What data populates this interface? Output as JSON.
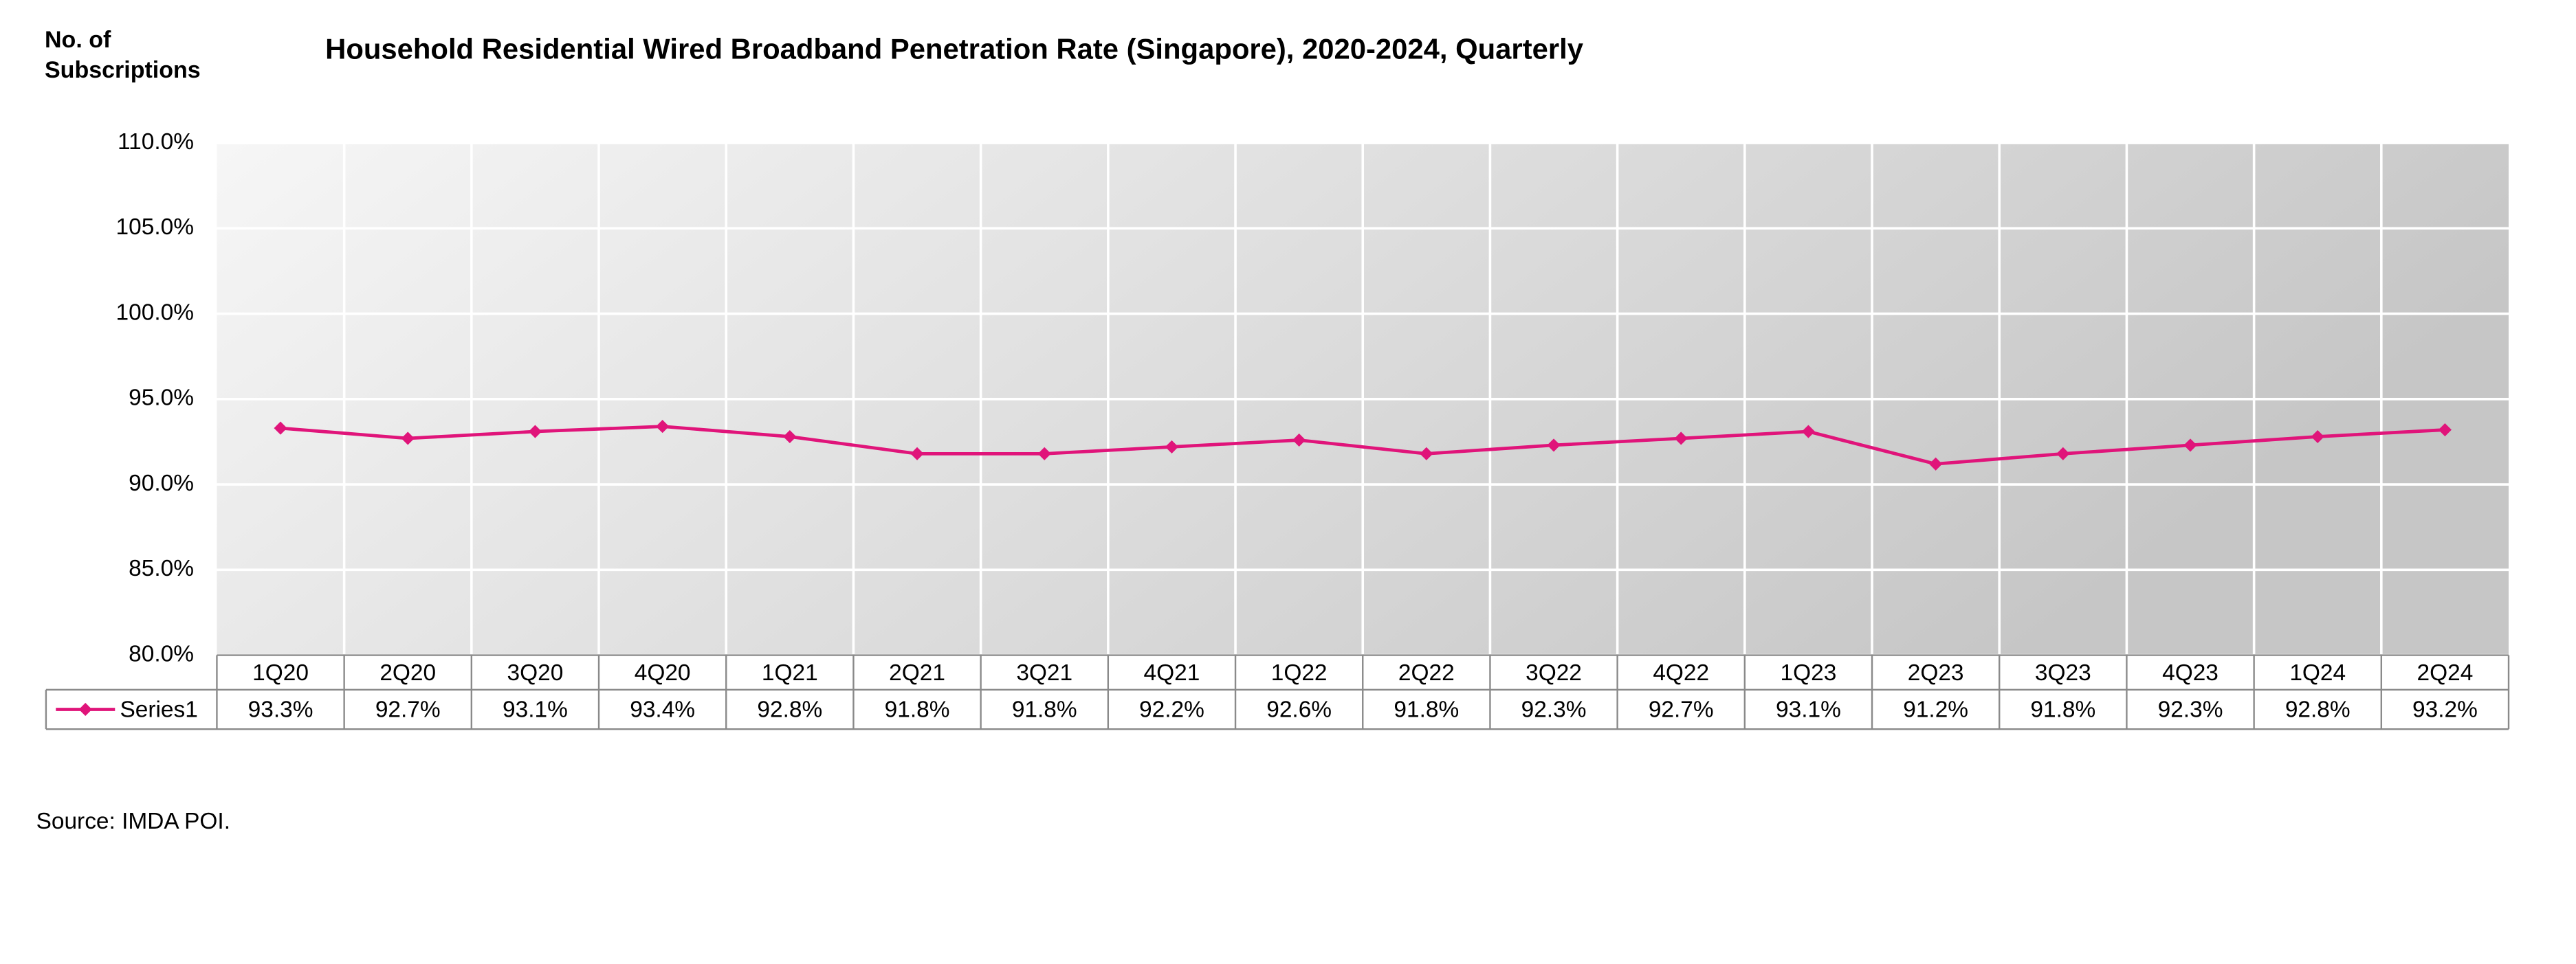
{
  "chart_data": {
    "type": "line",
    "title": "Household Residential Wired Broadband Penetration Rate (Singapore), 2020-2024, Quarterly",
    "y_label": "No. of Subscriptions",
    "source": "Source: IMDA POI.",
    "categories": [
      "1Q20",
      "2Q20",
      "3Q20",
      "4Q20",
      "1Q21",
      "2Q21",
      "3Q21",
      "4Q21",
      "1Q22",
      "2Q22",
      "3Q22",
      "4Q22",
      "1Q23",
      "2Q23",
      "3Q23",
      "4Q23",
      "1Q24",
      "2Q24"
    ],
    "series": [
      {
        "name": "Series1",
        "color": "#e0147a",
        "values": [
          93.3,
          92.7,
          93.1,
          93.4,
          92.8,
          91.8,
          91.8,
          92.2,
          92.6,
          91.8,
          92.3,
          92.7,
          93.1,
          91.2,
          91.8,
          92.3,
          92.8,
          93.2
        ],
        "value_labels": [
          "93.3%",
          "92.7%",
          "93.1%",
          "93.4%",
          "92.8%",
          "91.8%",
          "91.8%",
          "92.2%",
          "92.6%",
          "91.8%",
          "92.3%",
          "92.7%",
          "93.1%",
          "91.2%",
          "91.8%",
          "92.3%",
          "92.8%",
          "93.2%"
        ]
      }
    ],
    "ylim": [
      80,
      110
    ],
    "yticks": [
      {
        "value": 80,
        "label": "80.0%"
      },
      {
        "value": 85,
        "label": "85.0%"
      },
      {
        "value": 90,
        "label": "90.0%"
      },
      {
        "value": 95,
        "label": "95.0%"
      },
      {
        "value": 100,
        "label": "100.0%"
      },
      {
        "value": 105,
        "label": "105.0%"
      },
      {
        "value": 110,
        "label": "110.0%"
      }
    ],
    "grid": true
  }
}
